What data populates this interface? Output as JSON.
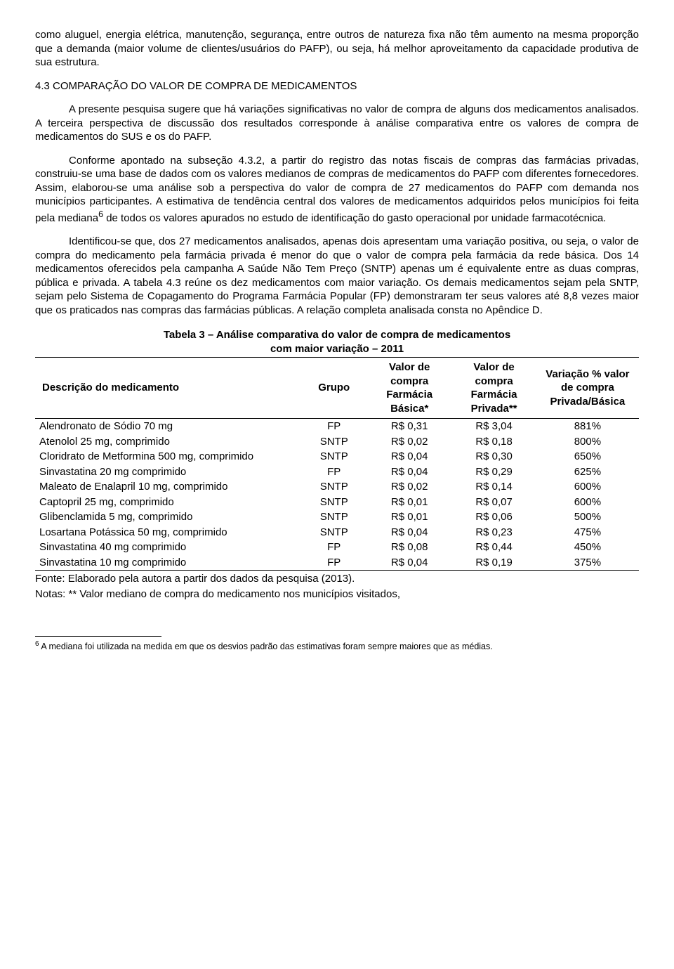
{
  "para1": "como aluguel, energia elétrica, manutenção, segurança, entre outros de natureza fixa não têm aumento na mesma proporção que a demanda (maior volume de clientes/usuários do PAFP), ou seja, há melhor aproveitamento da capacidade produtiva de sua estrutura.",
  "heading": "4.3 COMPARAÇÃO DO VALOR DE COMPRA DE MEDICAMENTOS",
  "para2": "A presente pesquisa sugere que há variações significativas no valor de compra de alguns dos medicamentos analisados. A terceira perspectiva de discussão dos resultados corresponde à análise comparativa entre os valores de compra de medicamentos do SUS e os do PAFP.",
  "para3a": "Conforme apontado na subseção 4.3.2, a partir do registro das notas fiscais de compras das farmácias privadas, construiu-se uma base de dados com os valores medianos de compras de medicamentos do PAFP com diferentes fornecedores. Assim, elaborou-se uma análise sob a perspectiva do valor de compra de 27 medicamentos do PAFP com demanda nos municípios participantes. A estimativa de tendência central dos valores de medicamentos adquiridos pelos municípios foi feita pela mediana",
  "para3b": " de todos os valores apurados no estudo de identificação do gasto operacional por unidade farmacotécnica.",
  "supref": "6",
  "para4": "Identificou-se que, dos 27 medicamentos analisados, apenas dois apresentam uma variação positiva, ou seja, o valor de compra do medicamento pela farmácia privada é menor do que o valor de compra pela farmácia da rede básica. Dos 14 medicamentos oferecidos pela campanha A Saúde Não Tem Preço (SNTP) apenas um é equivalente entre as duas compras, pública e privada. A tabela 4.3 reúne os dez medicamentos com maior variação. Os demais medicamentos sejam pela SNTP, sejam pelo Sistema de Copagamento do Programa Farmácia Popular (FP) demonstraram ter seus valores até 8,8 vezes maior que os praticados nas compras das farmácias públicas. A relação completa analisada consta no Apêndice D.",
  "table": {
    "title_line1": "Tabela 3 – Análise comparativa do valor de compra de medicamentos",
    "title_line2": "com maior variação – 2011",
    "columns": {
      "desc": "Descrição do medicamento",
      "grupo": "Grupo",
      "val_basica": "Valor de compra Farmácia Básica*",
      "val_privada": "Valor de compra Farmácia Privada**",
      "variacao": "Variação % valor de compra Privada/Básica"
    },
    "col_widths": [
      "44%",
      "11%",
      "14%",
      "14%",
      "17%"
    ],
    "rows": [
      {
        "desc": "Alendronato de Sódio 70 mg",
        "grp": "FP",
        "b": "R$ 0,31",
        "p": "R$ 3,04",
        "v": "881%"
      },
      {
        "desc": "Atenolol 25 mg, comprimido",
        "grp": "SNTP",
        "b": "R$ 0,02",
        "p": "R$ 0,18",
        "v": "800%"
      },
      {
        "desc": "Cloridrato de Metformina 500 mg, comprimido",
        "grp": "SNTP",
        "b": "R$ 0,04",
        "p": "R$ 0,30",
        "v": "650%"
      },
      {
        "desc": "Sinvastatina 20 mg comprimido",
        "grp": "FP",
        "b": "R$ 0,04",
        "p": "R$ 0,29",
        "v": "625%"
      },
      {
        "desc": "Maleato de Enalapril 10 mg, comprimido",
        "grp": "SNTP",
        "b": "R$ 0,02",
        "p": "R$ 0,14",
        "v": "600%"
      },
      {
        "desc": "Captopril 25 mg, comprimido",
        "grp": "SNTP",
        "b": "R$ 0,01",
        "p": "R$ 0,07",
        "v": "600%"
      },
      {
        "desc": "Glibenclamida 5 mg, comprimido",
        "grp": "SNTP",
        "b": "R$ 0,01",
        "p": "R$ 0,06",
        "v": "500%"
      },
      {
        "desc": "Losartana Potássica 50 mg, comprimido",
        "grp": "SNTP",
        "b": "R$ 0,04",
        "p": "R$ 0,23",
        "v": "475%"
      },
      {
        "desc": "Sinvastatina 40 mg comprimido",
        "grp": "FP",
        "b": "R$ 0,08",
        "p": "R$ 0,44",
        "v": "450%"
      },
      {
        "desc": "Sinvastatina 10 mg comprimido",
        "grp": "FP",
        "b": "R$ 0,04",
        "p": "R$ 0,19",
        "v": "375%"
      }
    ],
    "fonte": "Fonte: Elaborado pela autora a partir dos dados da pesquisa (2013).",
    "notas": "Notas: ** Valor mediano de compra do medicamento nos municípios visitados,"
  },
  "footnote": {
    "num": "6",
    "text": " A mediana foi utilizada na medida em que os desvios padrão das estimativas foram sempre maiores que as médias."
  }
}
